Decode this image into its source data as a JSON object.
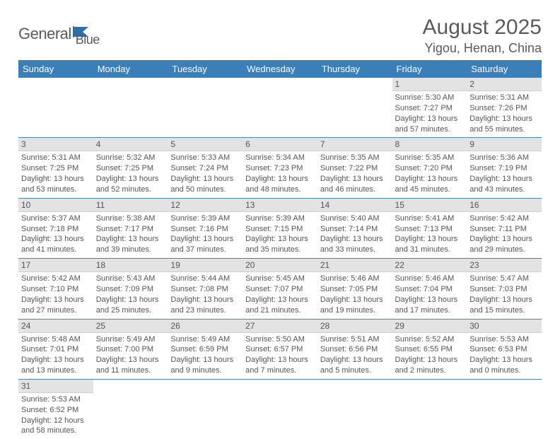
{
  "brand": {
    "name1": "General",
    "name2": "Blue"
  },
  "title": "August 2025",
  "location": "Yigou, Henan, China",
  "header_bg": "#3a7fb8",
  "weekdays": [
    "Sunday",
    "Monday",
    "Tuesday",
    "Wednesday",
    "Thursday",
    "Friday",
    "Saturday"
  ],
  "weeks": [
    [
      null,
      null,
      null,
      null,
      null,
      {
        "n": "1",
        "sr": "5:30 AM",
        "ss": "7:27 PM",
        "dh": "13",
        "dm": "57"
      },
      {
        "n": "2",
        "sr": "5:31 AM",
        "ss": "7:26 PM",
        "dh": "13",
        "dm": "55"
      }
    ],
    [
      {
        "n": "3",
        "sr": "5:31 AM",
        "ss": "7:25 PM",
        "dh": "13",
        "dm": "53"
      },
      {
        "n": "4",
        "sr": "5:32 AM",
        "ss": "7:25 PM",
        "dh": "13",
        "dm": "52"
      },
      {
        "n": "5",
        "sr": "5:33 AM",
        "ss": "7:24 PM",
        "dh": "13",
        "dm": "50"
      },
      {
        "n": "6",
        "sr": "5:34 AM",
        "ss": "7:23 PM",
        "dh": "13",
        "dm": "48"
      },
      {
        "n": "7",
        "sr": "5:35 AM",
        "ss": "7:22 PM",
        "dh": "13",
        "dm": "46"
      },
      {
        "n": "8",
        "sr": "5:35 AM",
        "ss": "7:20 PM",
        "dh": "13",
        "dm": "45"
      },
      {
        "n": "9",
        "sr": "5:36 AM",
        "ss": "7:19 PM",
        "dh": "13",
        "dm": "43"
      }
    ],
    [
      {
        "n": "10",
        "sr": "5:37 AM",
        "ss": "7:18 PM",
        "dh": "13",
        "dm": "41"
      },
      {
        "n": "11",
        "sr": "5:38 AM",
        "ss": "7:17 PM",
        "dh": "13",
        "dm": "39"
      },
      {
        "n": "12",
        "sr": "5:39 AM",
        "ss": "7:16 PM",
        "dh": "13",
        "dm": "37"
      },
      {
        "n": "13",
        "sr": "5:39 AM",
        "ss": "7:15 PM",
        "dh": "13",
        "dm": "35"
      },
      {
        "n": "14",
        "sr": "5:40 AM",
        "ss": "7:14 PM",
        "dh": "13",
        "dm": "33"
      },
      {
        "n": "15",
        "sr": "5:41 AM",
        "ss": "7:13 PM",
        "dh": "13",
        "dm": "31"
      },
      {
        "n": "16",
        "sr": "5:42 AM",
        "ss": "7:11 PM",
        "dh": "13",
        "dm": "29"
      }
    ],
    [
      {
        "n": "17",
        "sr": "5:42 AM",
        "ss": "7:10 PM",
        "dh": "13",
        "dm": "27"
      },
      {
        "n": "18",
        "sr": "5:43 AM",
        "ss": "7:09 PM",
        "dh": "13",
        "dm": "25"
      },
      {
        "n": "19",
        "sr": "5:44 AM",
        "ss": "7:08 PM",
        "dh": "13",
        "dm": "23"
      },
      {
        "n": "20",
        "sr": "5:45 AM",
        "ss": "7:07 PM",
        "dh": "13",
        "dm": "21"
      },
      {
        "n": "21",
        "sr": "5:46 AM",
        "ss": "7:05 PM",
        "dh": "13",
        "dm": "19"
      },
      {
        "n": "22",
        "sr": "5:46 AM",
        "ss": "7:04 PM",
        "dh": "13",
        "dm": "17"
      },
      {
        "n": "23",
        "sr": "5:47 AM",
        "ss": "7:03 PM",
        "dh": "13",
        "dm": "15"
      }
    ],
    [
      {
        "n": "24",
        "sr": "5:48 AM",
        "ss": "7:01 PM",
        "dh": "13",
        "dm": "13"
      },
      {
        "n": "25",
        "sr": "5:49 AM",
        "ss": "7:00 PM",
        "dh": "13",
        "dm": "11"
      },
      {
        "n": "26",
        "sr": "5:49 AM",
        "ss": "6:59 PM",
        "dh": "13",
        "dm": "9"
      },
      {
        "n": "27",
        "sr": "5:50 AM",
        "ss": "6:57 PM",
        "dh": "13",
        "dm": "7"
      },
      {
        "n": "28",
        "sr": "5:51 AM",
        "ss": "6:56 PM",
        "dh": "13",
        "dm": "5"
      },
      {
        "n": "29",
        "sr": "5:52 AM",
        "ss": "6:55 PM",
        "dh": "13",
        "dm": "2"
      },
      {
        "n": "30",
        "sr": "5:53 AM",
        "ss": "6:53 PM",
        "dh": "13",
        "dm": "0"
      }
    ],
    [
      {
        "n": "31",
        "sr": "5:53 AM",
        "ss": "6:52 PM",
        "dh": "12",
        "dm": "58"
      },
      null,
      null,
      null,
      null,
      null,
      null
    ]
  ],
  "labels": {
    "sunrise": "Sunrise:",
    "sunset": "Sunset:",
    "daylight": "Daylight:",
    "hours": "hours",
    "and": "and",
    "minutes": "minutes."
  }
}
